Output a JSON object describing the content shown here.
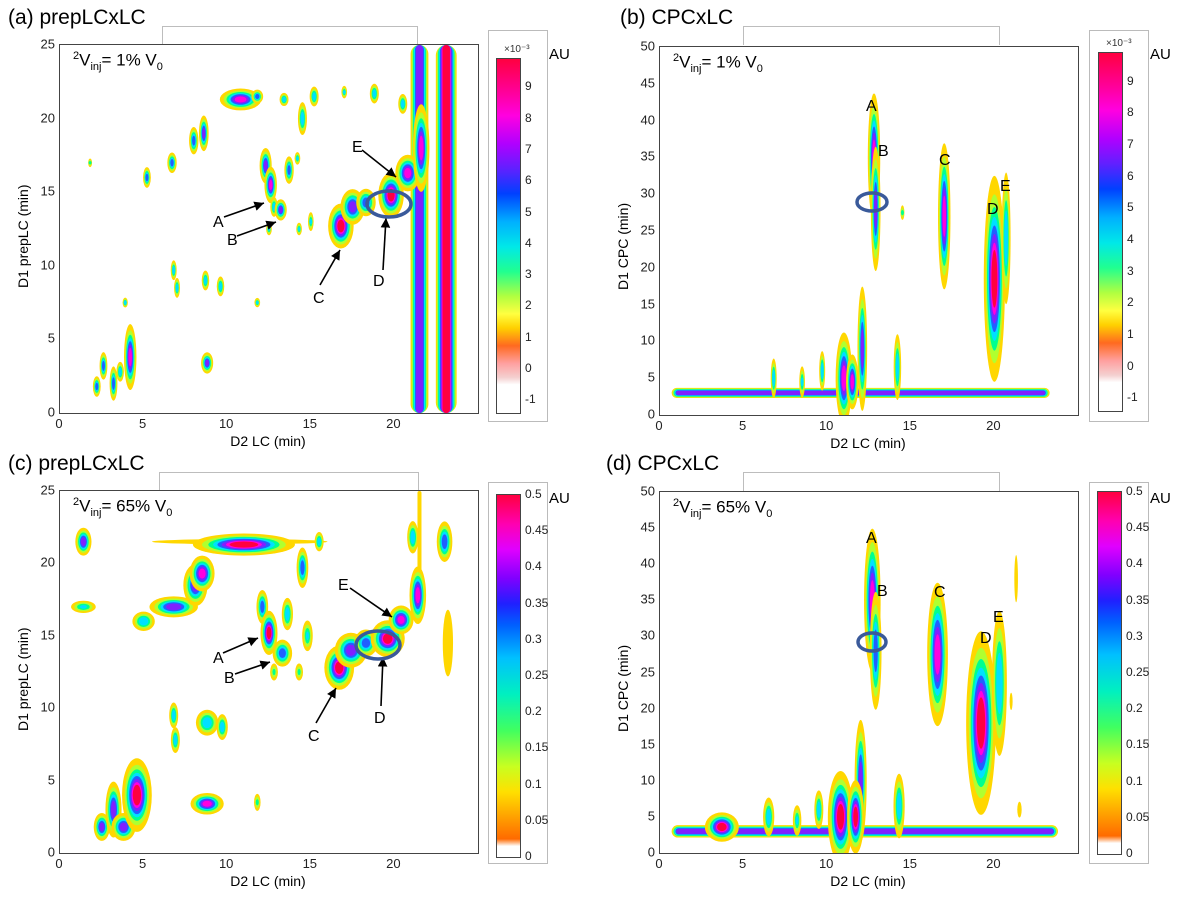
{
  "panels": [
    {
      "id": "a",
      "title": "(a) prepLCxLC",
      "injection": {
        "pre": "2",
        "v": "V",
        "sub": "inj",
        "mid": "= 1% V",
        "sub0": "0"
      },
      "xlabel": "D2 LC (min)",
      "ylabel": "D1 prepLC (min)",
      "xticks": [
        "0",
        "5",
        "10",
        "15",
        "20"
      ],
      "yticks": [
        "0",
        "5",
        "10",
        "15",
        "20",
        "25"
      ],
      "colorbar": {
        "unit": "AU",
        "exponent": "×10⁻³",
        "ticks": [
          "-1",
          "0",
          "1",
          "2",
          "3",
          "4",
          "5",
          "6",
          "7",
          "8",
          "9"
        ]
      },
      "labels": [
        "A",
        "B",
        "C",
        "D",
        "E"
      ]
    },
    {
      "id": "b",
      "title": "(b) CPCxLC",
      "injection": {
        "pre": "2",
        "v": "V",
        "sub": "inj",
        "mid": "= 1% V",
        "sub0": "0"
      },
      "xlabel": "D2 LC (min)",
      "ylabel": "D1 CPC (min)",
      "xticks": [
        "0",
        "5",
        "10",
        "15",
        "20"
      ],
      "yticks": [
        "0",
        "5",
        "10",
        "15",
        "20",
        "25",
        "30",
        "35",
        "40",
        "45",
        "50"
      ],
      "colorbar": {
        "unit": "AU",
        "exponent": "×10⁻³",
        "ticks": [
          "-1",
          "0",
          "1",
          "2",
          "3",
          "4",
          "5",
          "6",
          "7",
          "8",
          "9"
        ]
      },
      "labels": [
        "A",
        "B",
        "C",
        "D",
        "E"
      ]
    },
    {
      "id": "c",
      "title": "(c) prepLCxLC",
      "injection": {
        "pre": "2",
        "v": "V",
        "sub": "inj",
        "mid": "= 65% V",
        "sub0": "0"
      },
      "xlabel": "D2 LC (min)",
      "ylabel": "D1 prepLC (min)",
      "xticks": [
        "0",
        "5",
        "10",
        "15",
        "20"
      ],
      "yticks": [
        "0",
        "5",
        "10",
        "15",
        "20",
        "25"
      ],
      "colorbar": {
        "unit": "AU",
        "exponent": "",
        "ticks": [
          "0",
          "0.05",
          "0.1",
          "0.15",
          "0.2",
          "0.25",
          "0.3",
          "0.35",
          "0.4",
          "0.45",
          "0.5"
        ]
      },
      "labels": [
        "A",
        "B",
        "C",
        "D",
        "E"
      ]
    },
    {
      "id": "d",
      "title": "(d) CPCxLC",
      "injection": {
        "pre": "2",
        "v": "V",
        "sub": "inj",
        "mid": "= 65% V",
        "sub0": "0"
      },
      "xlabel": "D2 LC (min)",
      "ylabel": "D1 CPC (min)",
      "xticks": [
        "0",
        "5",
        "10",
        "15",
        "20"
      ],
      "yticks": [
        "0",
        "5",
        "10",
        "15",
        "20",
        "25",
        "30",
        "35",
        "40",
        "45",
        "50"
      ],
      "colorbar": {
        "unit": "AU",
        "exponent": "",
        "ticks": [
          "0",
          "0.05",
          "0.1",
          "0.15",
          "0.2",
          "0.25",
          "0.3",
          "0.35",
          "0.4",
          "0.45",
          "0.5"
        ]
      },
      "labels": [
        "A",
        "B",
        "C",
        "D",
        "E"
      ]
    }
  ],
  "chart_data": [
    {
      "type": "heatmap",
      "title": "(a) prepLCxLC",
      "xlabel": "D2 LC (min)",
      "ylabel": "D1 prepLC (min)",
      "xlim": [
        0,
        25
      ],
      "ylim": [
        0,
        25
      ],
      "colorbar": {
        "unit": "AU",
        "scale": "x10^-3",
        "range": [
          -1,
          10
        ]
      },
      "colormap": [
        "#ffffff",
        "#e8a0a0",
        "#ff6a00",
        "#ffff00",
        "#00ff80",
        "#00e0ff",
        "#0000ff",
        "#c000ff",
        "#ff00ff",
        "#ff0040"
      ],
      "peaks": [
        {
          "x": 2.2,
          "y": 1.8,
          "sx": 0.1,
          "sy": 0.3,
          "v": 7
        },
        {
          "x": 2.6,
          "y": 3.2,
          "sx": 0.1,
          "sy": 0.4,
          "v": 7
        },
        {
          "x": 3.2,
          "y": 2.0,
          "sx": 0.1,
          "sy": 0.5,
          "v": 7
        },
        {
          "x": 3.6,
          "y": 2.8,
          "sx": 0.1,
          "sy": 0.3,
          "v": 6
        },
        {
          "x": 4.2,
          "y": 3.8,
          "sx": 0.15,
          "sy": 0.9,
          "v": 9
        },
        {
          "x": 3.9,
          "y": 7.5,
          "sx": 0.07,
          "sy": 0.15,
          "v": 6
        },
        {
          "x": 1.8,
          "y": 17.0,
          "sx": 0.06,
          "sy": 0.15,
          "v": 4
        },
        {
          "x": 5.2,
          "y": 16.0,
          "sx": 0.1,
          "sy": 0.3,
          "v": 7
        },
        {
          "x": 6.8,
          "y": 9.7,
          "sx": 0.08,
          "sy": 0.3,
          "v": 6
        },
        {
          "x": 7.0,
          "y": 8.5,
          "sx": 0.08,
          "sy": 0.3,
          "v": 6
        },
        {
          "x": 6.7,
          "y": 17.0,
          "sx": 0.12,
          "sy": 0.3,
          "v": 7
        },
        {
          "x": 8.0,
          "y": 18.5,
          "sx": 0.12,
          "sy": 0.4,
          "v": 7
        },
        {
          "x": 8.6,
          "y": 19.0,
          "sx": 0.12,
          "sy": 0.5,
          "v": 8
        },
        {
          "x": 8.7,
          "y": 9.0,
          "sx": 0.1,
          "sy": 0.3,
          "v": 6
        },
        {
          "x": 8.8,
          "y": 3.4,
          "sx": 0.15,
          "sy": 0.3,
          "v": 8
        },
        {
          "x": 9.6,
          "y": 8.6,
          "sx": 0.1,
          "sy": 0.3,
          "v": 6
        },
        {
          "x": 10.8,
          "y": 21.3,
          "sx": 0.5,
          "sy": 0.3,
          "v": 9
        },
        {
          "x": 11.8,
          "y": 21.5,
          "sx": 0.15,
          "sy": 0.2,
          "v": 7
        },
        {
          "x": 12.3,
          "y": 16.8,
          "sx": 0.15,
          "sy": 0.5,
          "v": 8
        },
        {
          "x": 12.6,
          "y": 15.5,
          "sx": 0.15,
          "sy": 0.5,
          "v": 9
        },
        {
          "x": 12.8,
          "y": 14.0,
          "sx": 0.1,
          "sy": 0.3,
          "v": 6
        },
        {
          "x": 13.2,
          "y": 13.8,
          "sx": 0.15,
          "sy": 0.3,
          "v": 8
        },
        {
          "x": 13.4,
          "y": 21.3,
          "sx": 0.12,
          "sy": 0.2,
          "v": 6
        },
        {
          "x": 13.7,
          "y": 16.5,
          "sx": 0.12,
          "sy": 0.4,
          "v": 7
        },
        {
          "x": 14.2,
          "y": 17.3,
          "sx": 0.08,
          "sy": 0.2,
          "v": 5
        },
        {
          "x": 14.5,
          "y": 20.0,
          "sx": 0.12,
          "sy": 0.5,
          "v": 6
        },
        {
          "x": 15.2,
          "y": 21.5,
          "sx": 0.12,
          "sy": 0.3,
          "v": 6
        },
        {
          "x": 11.8,
          "y": 7.5,
          "sx": 0.08,
          "sy": 0.15,
          "v": 5
        },
        {
          "x": 12.5,
          "y": 12.5,
          "sx": 0.08,
          "sy": 0.2,
          "v": 5
        },
        {
          "x": 14.3,
          "y": 12.5,
          "sx": 0.08,
          "sy": 0.2,
          "v": 5
        },
        {
          "x": 15.0,
          "y": 13.0,
          "sx": 0.08,
          "sy": 0.3,
          "v": 5
        },
        {
          "x": 16.8,
          "y": 12.7,
          "sx": 0.3,
          "sy": 0.6,
          "v": 10
        },
        {
          "x": 17.5,
          "y": 14.0,
          "sx": 0.3,
          "sy": 0.5,
          "v": 8
        },
        {
          "x": 18.3,
          "y": 14.3,
          "sx": 0.25,
          "sy": 0.4,
          "v": 7
        },
        {
          "x": 19.8,
          "y": 14.8,
          "sx": 0.3,
          "sy": 0.6,
          "v": 10
        },
        {
          "x": 20.8,
          "y": 16.3,
          "sx": 0.3,
          "sy": 0.5,
          "v": 9
        },
        {
          "x": 21.6,
          "y": 18.0,
          "sx": 0.2,
          "sy": 1.2,
          "v": 9
        },
        {
          "x": 17.0,
          "y": 21.8,
          "sx": 0.08,
          "sy": 0.2,
          "v": 5
        },
        {
          "x": 18.8,
          "y": 21.7,
          "sx": 0.12,
          "sy": 0.3,
          "v": 6
        },
        {
          "x": 20.5,
          "y": 21.0,
          "sx": 0.12,
          "sy": 0.3,
          "v": 6
        }
      ],
      "bands": [
        {
          "x": 21.5,
          "width": 0.7,
          "v": 8
        },
        {
          "x": 23.1,
          "width": 0.8,
          "v": 10
        }
      ]
    },
    {
      "type": "heatmap",
      "title": "(b) CPCxLC",
      "xlabel": "D2 LC (min)",
      "ylabel": "D1 CPC (min)",
      "xlim": [
        0,
        25
      ],
      "ylim": [
        0,
        50
      ],
      "colorbar": {
        "unit": "AU",
        "scale": "x10^-3",
        "range": [
          -1,
          10
        ]
      },
      "peaks": [
        {
          "x": 12.8,
          "y": 35.0,
          "sx": 0.15,
          "sy": 3.5,
          "v": 9
        },
        {
          "x": 12.9,
          "y": 28.0,
          "sx": 0.12,
          "sy": 3.5,
          "v": 8
        },
        {
          "x": 17.0,
          "y": 27.0,
          "sx": 0.15,
          "sy": 4.0,
          "v": 9
        },
        {
          "x": 20.0,
          "y": 18.5,
          "sx": 0.25,
          "sy": 5.5,
          "v": 10
        },
        {
          "x": 20.7,
          "y": 24.0,
          "sx": 0.12,
          "sy": 4.0,
          "v": 6
        },
        {
          "x": 14.5,
          "y": 27.5,
          "sx": 0.06,
          "sy": 0.5,
          "v": 4
        },
        {
          "x": 12.1,
          "y": 9.0,
          "sx": 0.12,
          "sy": 3.5,
          "v": 8
        },
        {
          "x": 11.0,
          "y": 5.0,
          "sx": 0.2,
          "sy": 2.5,
          "v": 9
        },
        {
          "x": 11.5,
          "y": 4.5,
          "sx": 0.15,
          "sy": 1.5,
          "v": 9
        },
        {
          "x": 14.2,
          "y": 6.5,
          "sx": 0.1,
          "sy": 2.0,
          "v": 6
        },
        {
          "x": 6.8,
          "y": 5.0,
          "sx": 0.08,
          "sy": 1.2,
          "v": 6
        },
        {
          "x": 9.7,
          "y": 6.0,
          "sx": 0.08,
          "sy": 1.2,
          "v": 6
        },
        {
          "x": 8.5,
          "y": 4.5,
          "sx": 0.08,
          "sy": 1.0,
          "v": 5
        }
      ],
      "hbands": [
        {
          "y": 3.0,
          "x0": 1.0,
          "x1": 23.0,
          "height": 0.8,
          "v": 8
        }
      ]
    },
    {
      "type": "heatmap",
      "title": "(c) prepLCxLC",
      "xlabel": "D2 LC (min)",
      "ylabel": "D1 prepLC (min)",
      "xlim": [
        0,
        25
      ],
      "ylim": [
        0,
        25
      ],
      "colorbar": {
        "unit": "AU",
        "range": [
          0,
          0.5
        ]
      },
      "peaks": [
        {
          "x": 1.4,
          "y": 21.5,
          "sx": 0.2,
          "sy": 0.4,
          "v": 0.4
        },
        {
          "x": 1.4,
          "y": 17.0,
          "sx": 0.35,
          "sy": 0.2,
          "v": 0.25
        },
        {
          "x": 2.5,
          "y": 1.8,
          "sx": 0.2,
          "sy": 0.4,
          "v": 0.4
        },
        {
          "x": 3.2,
          "y": 3.0,
          "sx": 0.2,
          "sy": 0.8,
          "v": 0.4
        },
        {
          "x": 3.8,
          "y": 1.8,
          "sx": 0.3,
          "sy": 0.4,
          "v": 0.4
        },
        {
          "x": 4.6,
          "y": 4.0,
          "sx": 0.35,
          "sy": 1.0,
          "v": 0.5
        },
        {
          "x": 5.0,
          "y": 16.0,
          "sx": 0.3,
          "sy": 0.3,
          "v": 0.3
        },
        {
          "x": 6.8,
          "y": 17.0,
          "sx": 0.6,
          "sy": 0.3,
          "v": 0.4
        },
        {
          "x": 6.8,
          "y": 9.5,
          "sx": 0.12,
          "sy": 0.4,
          "v": 0.3
        },
        {
          "x": 6.9,
          "y": 7.8,
          "sx": 0.12,
          "sy": 0.4,
          "v": 0.3
        },
        {
          "x": 8.1,
          "y": 18.5,
          "sx": 0.3,
          "sy": 0.6,
          "v": 0.4
        },
        {
          "x": 8.5,
          "y": 19.3,
          "sx": 0.3,
          "sy": 0.5,
          "v": 0.45
        },
        {
          "x": 8.8,
          "y": 9.0,
          "sx": 0.3,
          "sy": 0.4,
          "v": 0.3
        },
        {
          "x": 8.8,
          "y": 3.4,
          "sx": 0.4,
          "sy": 0.3,
          "v": 0.45
        },
        {
          "x": 9.7,
          "y": 8.7,
          "sx": 0.15,
          "sy": 0.4,
          "v": 0.3
        },
        {
          "x": 11.0,
          "y": 21.3,
          "sx": 1.2,
          "sy": 0.3,
          "v": 0.5
        },
        {
          "x": 11.8,
          "y": 3.5,
          "sx": 0.1,
          "sy": 0.3,
          "v": 0.2
        },
        {
          "x": 12.1,
          "y": 17.0,
          "sx": 0.15,
          "sy": 0.5,
          "v": 0.35
        },
        {
          "x": 12.5,
          "y": 15.2,
          "sx": 0.2,
          "sy": 0.6,
          "v": 0.5
        },
        {
          "x": 13.3,
          "y": 13.8,
          "sx": 0.25,
          "sy": 0.4,
          "v": 0.35
        },
        {
          "x": 13.6,
          "y": 16.5,
          "sx": 0.15,
          "sy": 0.5,
          "v": 0.3
        },
        {
          "x": 14.5,
          "y": 19.7,
          "sx": 0.15,
          "sy": 0.6,
          "v": 0.35
        },
        {
          "x": 14.8,
          "y": 15.0,
          "sx": 0.15,
          "sy": 0.5,
          "v": 0.25
        },
        {
          "x": 15.5,
          "y": 21.5,
          "sx": 0.12,
          "sy": 0.3,
          "v": 0.3
        },
        {
          "x": 16.7,
          "y": 12.8,
          "sx": 0.35,
          "sy": 0.6,
          "v": 0.5
        },
        {
          "x": 17.4,
          "y": 14.0,
          "sx": 0.4,
          "sy": 0.5,
          "v": 0.4
        },
        {
          "x": 18.3,
          "y": 14.5,
          "sx": 0.3,
          "sy": 0.4,
          "v": 0.35
        },
        {
          "x": 19.6,
          "y": 14.8,
          "sx": 0.4,
          "sy": 0.5,
          "v": 0.5
        },
        {
          "x": 20.4,
          "y": 16.1,
          "sx": 0.3,
          "sy": 0.4,
          "v": 0.45
        },
        {
          "x": 21.4,
          "y": 17.8,
          "sx": 0.2,
          "sy": 0.8,
          "v": 0.45
        },
        {
          "x": 21.1,
          "y": 21.8,
          "sx": 0.15,
          "sy": 0.5,
          "v": 0.3
        },
        {
          "x": 23.0,
          "y": 21.5,
          "sx": 0.2,
          "sy": 0.6,
          "v": 0.35
        },
        {
          "x": 23.2,
          "y": 14.5,
          "sx": 0.2,
          "sy": 1.5,
          "v": 0.12
        },
        {
          "x": 12.8,
          "y": 12.5,
          "sx": 0.12,
          "sy": 0.3,
          "v": 0.2
        },
        {
          "x": 14.3,
          "y": 12.5,
          "sx": 0.12,
          "sy": 0.3,
          "v": 0.2
        }
      ],
      "bands": [
        {
          "x": 21.5,
          "y0": 16.0,
          "y1": 25.0,
          "width": 0.3,
          "v": 0.08
        }
      ],
      "streak": {
        "y": 21.5,
        "x0": 5.5,
        "x1": 16.0,
        "height": 0.3,
        "v": 0.1
      }
    },
    {
      "type": "heatmap",
      "title": "(d) CPCxLC",
      "xlabel": "D2 LC (min)",
      "ylabel": "D1 CPC (min)",
      "xlim": [
        0,
        25
      ],
      "ylim": [
        0,
        50
      ],
      "colorbar": {
        "unit": "AU",
        "range": [
          0,
          0.5
        ]
      },
      "peaks": [
        {
          "x": 12.7,
          "y": 35.0,
          "sx": 0.2,
          "sy": 4.0,
          "v": 0.45
        },
        {
          "x": 12.9,
          "y": 28.0,
          "sx": 0.15,
          "sy": 3.5,
          "v": 0.35
        },
        {
          "x": 16.6,
          "y": 27.5,
          "sx": 0.25,
          "sy": 4.0,
          "v": 0.45
        },
        {
          "x": 19.2,
          "y": 18.0,
          "sx": 0.35,
          "sy": 5.0,
          "v": 0.5
        },
        {
          "x": 20.3,
          "y": 23.5,
          "sx": 0.2,
          "sy": 4.5,
          "v": 0.3
        },
        {
          "x": 21.3,
          "y": 38.0,
          "sx": 0.1,
          "sy": 3.0,
          "v": 0.08
        },
        {
          "x": 21.0,
          "y": 21.0,
          "sx": 0.1,
          "sy": 2.0,
          "v": 0.06
        },
        {
          "x": 15.5,
          "y": 28.0,
          "sx": 0.05,
          "sy": 1.0,
          "v": 0.05
        },
        {
          "x": 12.0,
          "y": 10.0,
          "sx": 0.15,
          "sy": 3.5,
          "v": 0.4
        },
        {
          "x": 10.8,
          "y": 5.0,
          "sx": 0.3,
          "sy": 2.5,
          "v": 0.5
        },
        {
          "x": 11.7,
          "y": 5.0,
          "sx": 0.2,
          "sy": 2.0,
          "v": 0.5
        },
        {
          "x": 14.3,
          "y": 6.5,
          "sx": 0.15,
          "sy": 2.0,
          "v": 0.3
        },
        {
          "x": 6.5,
          "y": 5.0,
          "sx": 0.15,
          "sy": 1.2,
          "v": 0.3
        },
        {
          "x": 9.5,
          "y": 6.0,
          "sx": 0.12,
          "sy": 1.2,
          "v": 0.3
        },
        {
          "x": 8.2,
          "y": 4.5,
          "sx": 0.12,
          "sy": 1.0,
          "v": 0.25
        },
        {
          "x": 21.5,
          "y": 6.0,
          "sx": 0.12,
          "sy": 1.0,
          "v": 0.08
        },
        {
          "x": 3.7,
          "y": 3.6,
          "sx": 0.4,
          "sy": 0.8,
          "v": 0.5
        }
      ],
      "hbands": [
        {
          "y": 3.0,
          "x0": 1.0,
          "x1": 23.5,
          "height": 1.0,
          "v": 0.4
        }
      ]
    }
  ]
}
